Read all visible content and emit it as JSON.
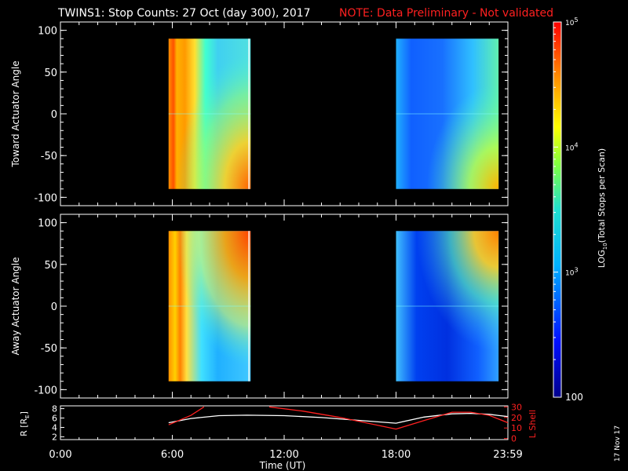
{
  "header": {
    "title": "TWINS1: Stop Counts: 27 Oct (day 300), 2017",
    "note": "NOTE: Data Preliminary - Not validated"
  },
  "stamp": "17 Nov 17",
  "colors": {
    "background": "#000000",
    "text": "#ffffff",
    "note": "#ff2020",
    "lshell_line": "#ff2020",
    "r_line": "#ffffff"
  },
  "chart_data": [
    {
      "type": "heatmap",
      "ylabel": "Toward Actuator Angle",
      "ylim": [
        -110,
        110
      ],
      "yticks": [
        "100",
        "50",
        "0",
        "-50",
        "-100"
      ],
      "xlim": [
        0,
        24
      ],
      "data_blocks": [
        {
          "start_ut": 5.8,
          "end_ut": 10.2,
          "angle_range": [
            -90,
            90
          ]
        },
        {
          "start_ut": 18.0,
          "end_ut": 23.5,
          "angle_range": [
            -90,
            90
          ]
        }
      ]
    },
    {
      "type": "heatmap",
      "ylabel": "Away Actuator Angle",
      "ylim": [
        -110,
        110
      ],
      "yticks": [
        "100",
        "50",
        "0",
        "-50",
        "-100"
      ],
      "xlim": [
        0,
        24
      ],
      "data_blocks": [
        {
          "start_ut": 5.8,
          "end_ut": 10.2,
          "angle_range": [
            -90,
            90
          ]
        },
        {
          "start_ut": 18.0,
          "end_ut": 23.5,
          "angle_range": [
            -90,
            90
          ]
        }
      ]
    },
    {
      "type": "line",
      "ylabel_left": "R [R",
      "ylabel_left_sub": "E",
      "ylabel_left_end": "]",
      "ylabel_right": "L Shell",
      "yticks_left": [
        "8",
        "6",
        "4",
        "2"
      ],
      "yticks_right": [
        "30",
        "20",
        "10",
        "0"
      ],
      "xlabel": "Time (UT)",
      "xticks": [
        "0:00",
        "6:00",
        "12:00",
        "18:00",
        "23:59"
      ],
      "series": [
        {
          "axis": "left",
          "x": [
            5.8,
            7,
            8.5,
            10,
            12,
            14,
            16,
            18,
            19.5,
            21,
            22,
            23,
            24
          ],
          "y": [
            5.0,
            5.9,
            6.5,
            6.6,
            6.5,
            6.1,
            5.5,
            4.9,
            6.2,
            6.9,
            7.0,
            6.8,
            6.3
          ]
        },
        {
          "axis": "right",
          "x": [
            5.8,
            7,
            7.7
          ],
          "y": [
            13,
            22,
            30
          ]
        },
        {
          "axis": "right",
          "x": [
            11.2,
            13,
            15,
            18,
            19.5,
            21,
            22,
            23,
            24
          ],
          "y": [
            30,
            26,
            20,
            9,
            17,
            25,
            25,
            22,
            15
          ]
        }
      ]
    },
    {
      "type": "heatmap",
      "colorbar": true,
      "scale": "log",
      "label": "LOG",
      "label_sub": "10",
      "label_end": "(Total Stops per Scan)",
      "ticks": [
        "10",
        "10",
        "10",
        "100"
      ],
      "tick_exponents": [
        "5",
        "4",
        "3",
        ""
      ],
      "range": [
        100,
        100000
      ]
    }
  ]
}
